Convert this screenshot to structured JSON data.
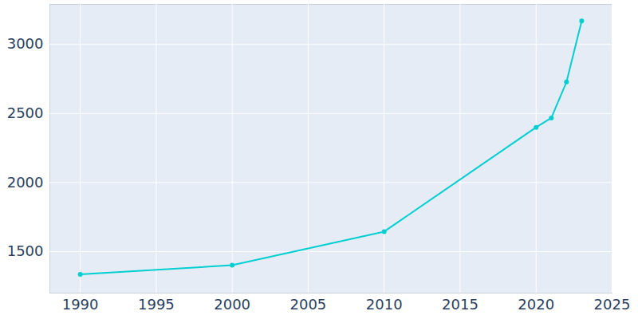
{
  "chart_data": {
    "type": "line",
    "x": [
      1990,
      2000,
      2010,
      2020,
      2021,
      2022,
      2023
    ],
    "series": [
      {
        "color": "#00cfd1",
        "marker": "circle",
        "values": [
          1335,
          1402,
          1645,
          2400,
          2468,
          2728,
          3170
        ]
      }
    ],
    "xlim": [
      1988,
      2025
    ],
    "xticks": [
      1990,
      1995,
      2000,
      2005,
      2010,
      2015,
      2020,
      2025
    ],
    "ylim": [
      1200,
      3290
    ],
    "yticks": [
      1500,
      2000,
      2500,
      3000
    ],
    "grid": true
  }
}
